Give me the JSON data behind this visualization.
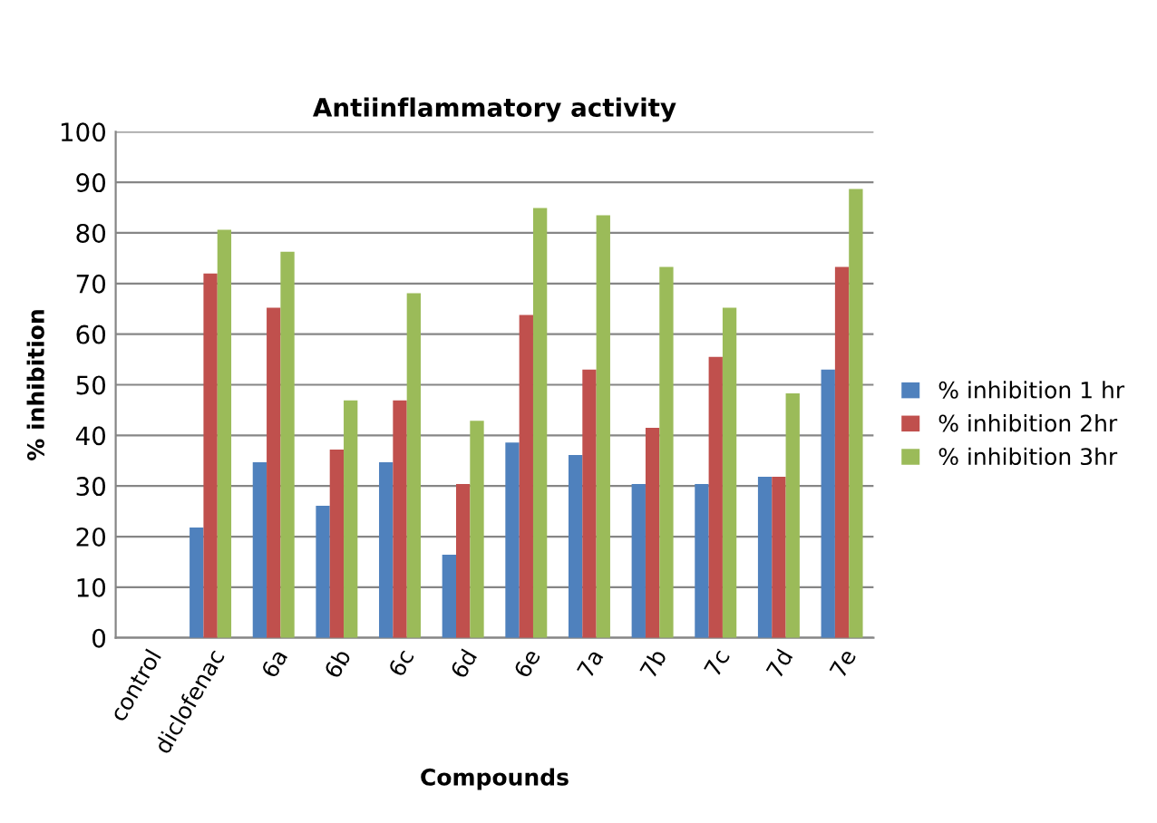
{
  "chart_data": {
    "type": "bar",
    "title": "Antiinflammatory activity",
    "xlabel": "Compounds",
    "ylabel": "% inhibition",
    "categories": [
      "control",
      "diclofenac",
      "6a",
      "6b",
      "6c",
      "6d",
      "6e",
      "7a",
      "7b",
      "7c",
      "7d",
      "7e"
    ],
    "series": [
      {
        "name": "% inhibition 1 hr",
        "color": "#4f81bd",
        "values": [
          0,
          21.8,
          34.7,
          26.1,
          34.7,
          16.4,
          38.6,
          36.1,
          30.4,
          30.4,
          31.8,
          53.0
        ]
      },
      {
        "name": "% inhibition 2hr",
        "color": "#c0504d",
        "values": [
          0,
          72.0,
          65.2,
          37.2,
          46.9,
          30.4,
          63.8,
          53.0,
          41.5,
          55.5,
          31.8,
          73.3
        ]
      },
      {
        "name": "% inhibition 3hr",
        "color": "#9bbb59",
        "values": [
          0,
          80.6,
          76.3,
          46.9,
          68.1,
          42.9,
          84.9,
          83.5,
          73.3,
          65.2,
          48.3,
          88.7
        ]
      }
    ],
    "ylim": [
      0,
      100
    ],
    "yticks": [
      0,
      10,
      20,
      30,
      40,
      50,
      60,
      70,
      80,
      90,
      100
    ],
    "grid": "y",
    "legend": "right"
  }
}
